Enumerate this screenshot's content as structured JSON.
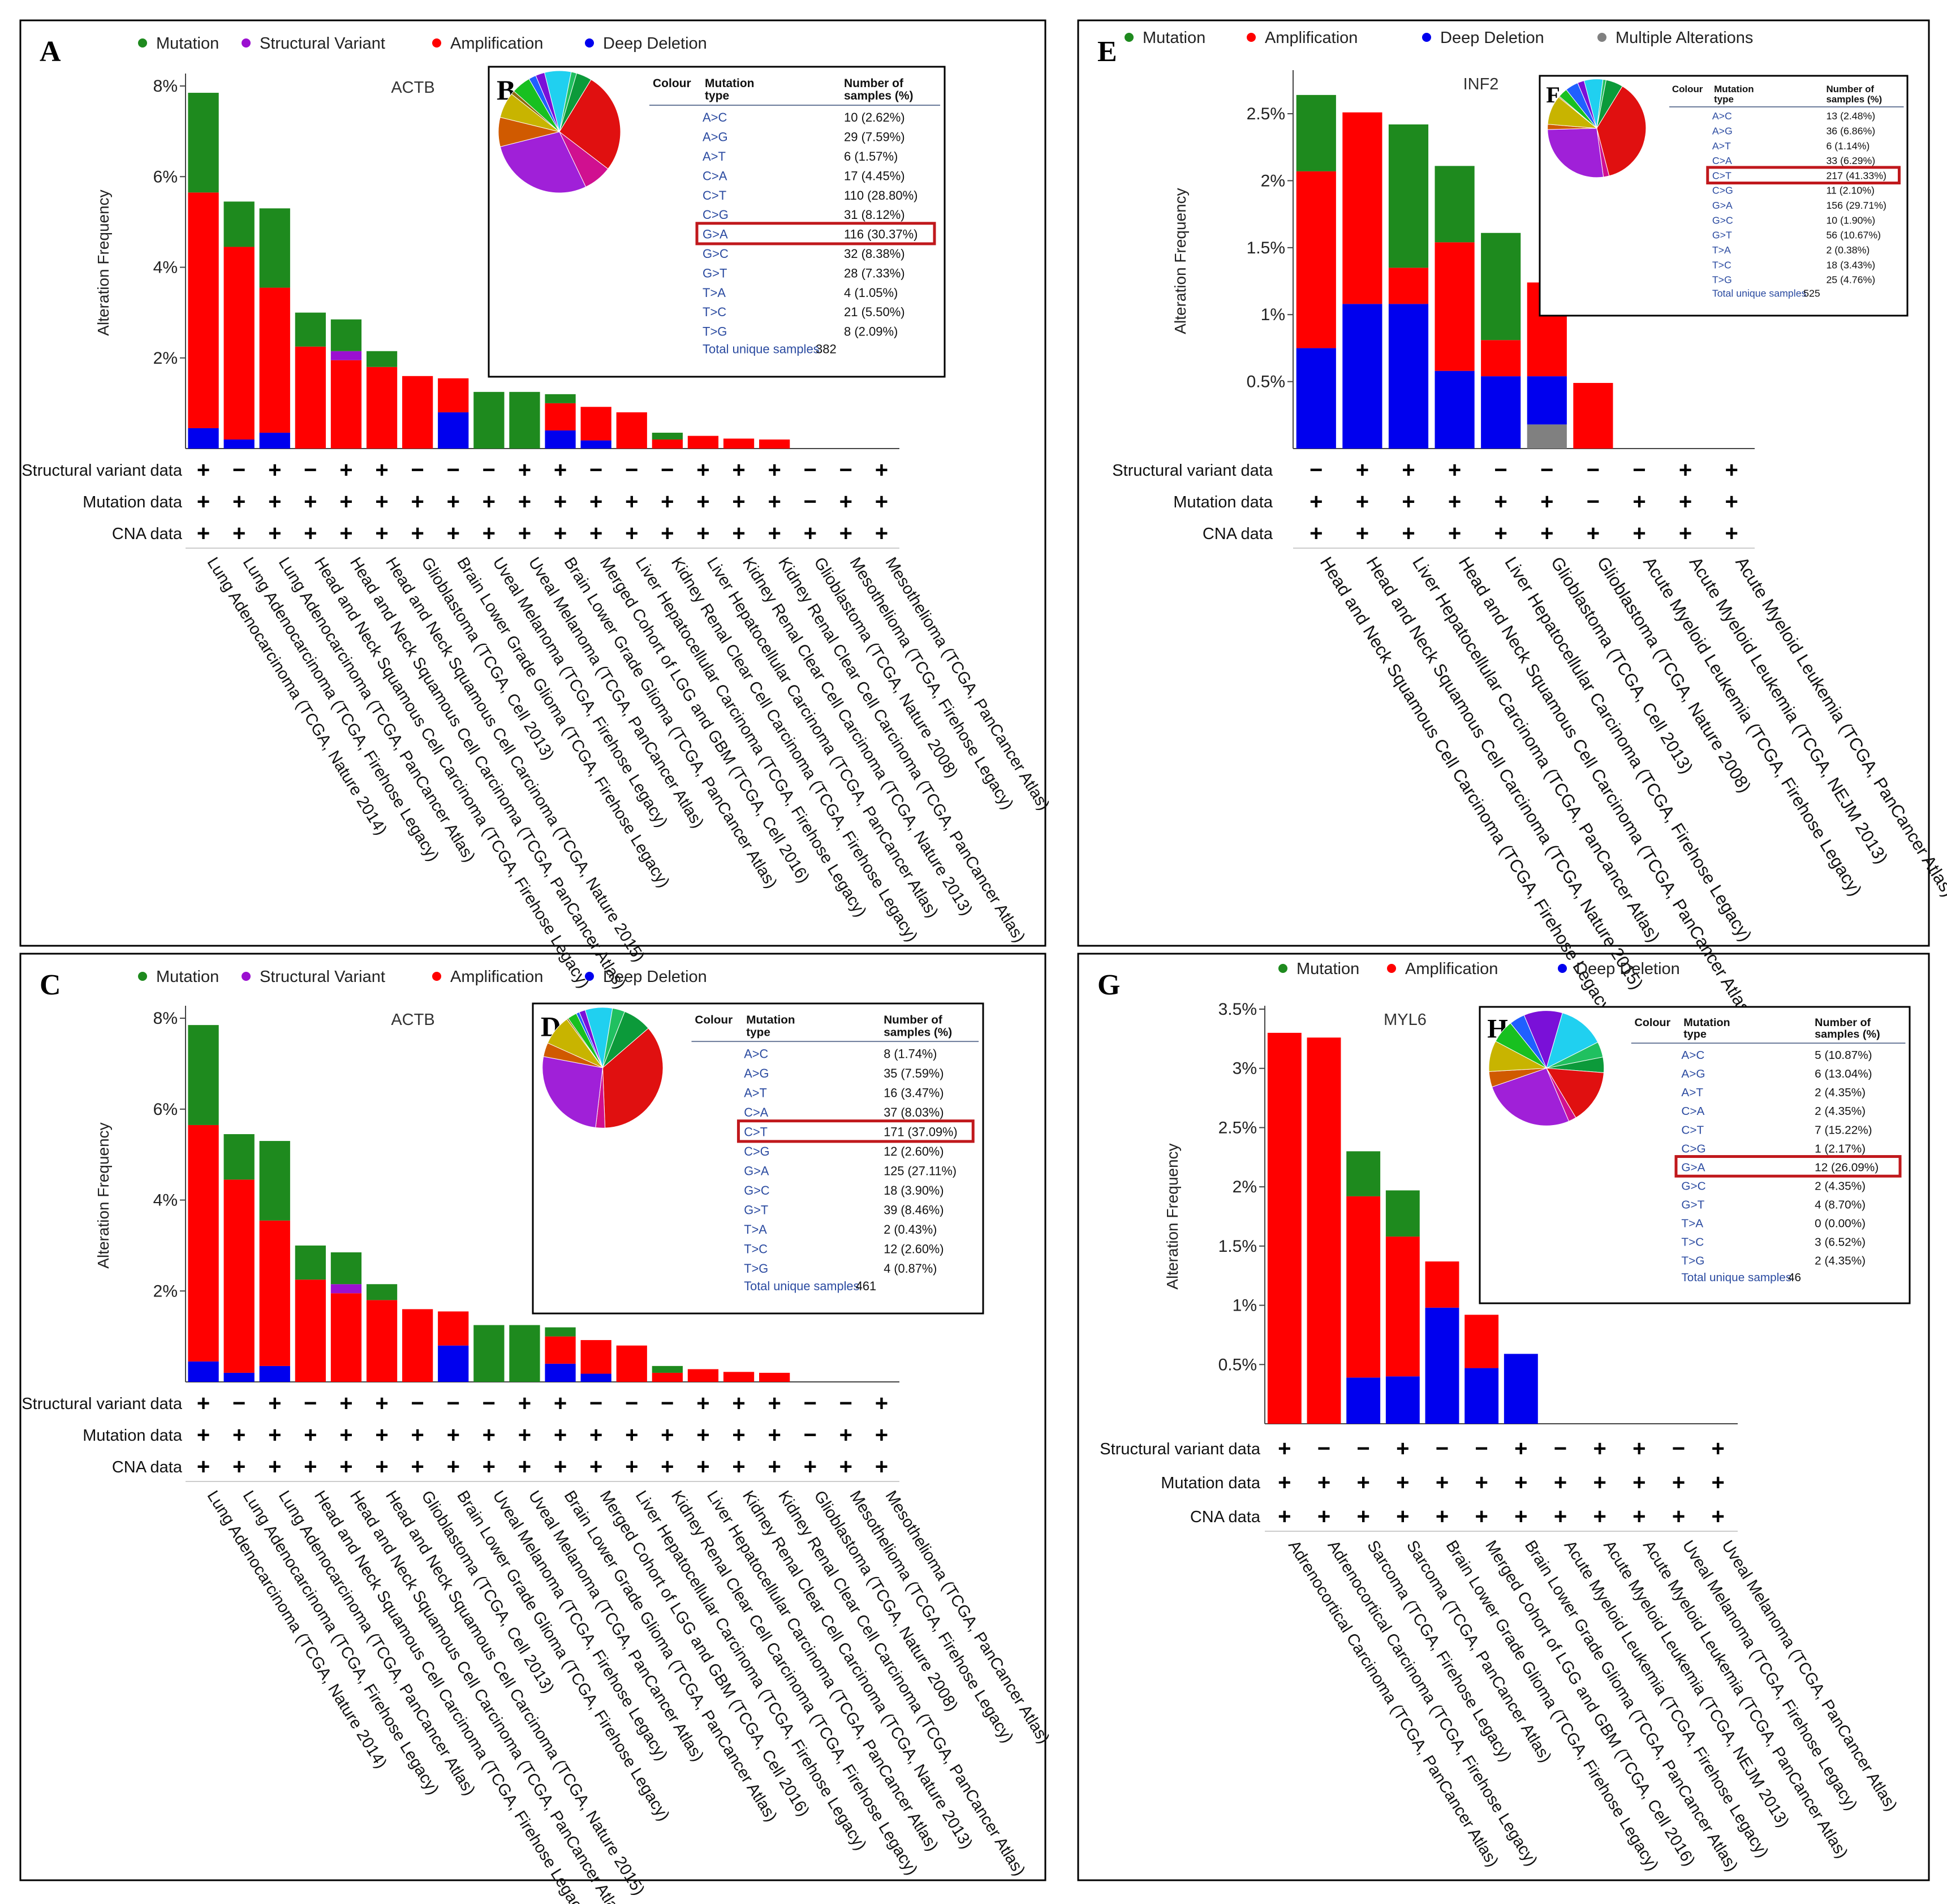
{
  "legends": {
    "A": [
      "Mutation",
      "Structural Variant",
      "Amplification",
      "Deep Deletion"
    ],
    "C": [
      "Mutation",
      "Structural Variant",
      "Amplification",
      "Deep Deletion"
    ],
    "E": [
      "Mutation",
      "Amplification",
      "Deep Deletion",
      "Multiple Alterations"
    ],
    "G": [
      "Mutation",
      "Amplification",
      "Deep Deletion"
    ]
  },
  "colors": {
    "mutation": "#1e8a1e",
    "structural": "#9b10d0",
    "amplification": "#ff0000",
    "deletion": "#0000ee",
    "multiple": "#808080",
    "highlight": "#c0181c",
    "table_text": "#2a4aa0"
  },
  "row_labels": [
    "Structural variant data",
    "Mutation data",
    "CNA data"
  ],
  "table_headers": {
    "colour": "Colour",
    "mutation_type_1": "Mutation",
    "mutation_type_2": "type",
    "samples_1": "Number of",
    "samples_2": "samples (%)"
  },
  "pie_palette": [
    "#7a10d8",
    "#20d0f0",
    "#20c060",
    "#0c9a3a",
    "#e01010",
    "#d01090",
    "#a020d8",
    "#d05a00",
    "#c8b400",
    "#8c6a10",
    "#18c020",
    "#2060ff",
    "#9aa000"
  ],
  "chart_data": [
    {
      "letter": "A",
      "inset_letter": "B",
      "type": "bar",
      "title": "ACTB",
      "ylabel": "Alteration Frequency",
      "ylim": [
        0,
        8.2
      ],
      "yticks": [
        2,
        4,
        6,
        8
      ],
      "ytick_labels": [
        "2%",
        "4%",
        "6%",
        "8%"
      ],
      "categories": [
        "Lung Adenocarcinoma (TCGA, Nature 2014)",
        "Lung Adenocarcinoma (TCGA, Firehose Legacy)",
        "Lung Adenocarcinoma (TCGA, PanCancer Atlas)",
        "Head and Neck Squamous Cell Carcinoma (TCGA, Firehose Legacy)",
        "Head and Neck Squamous Cell Carcinoma (TCGA, PanCancer Atlas)",
        "Head and Neck Squamous Cell Carcinoma (TCGA, Nature 2015)",
        "Glioblastoma (TCGA, Cell 2013)",
        "Brain Lower Grade Glioma (TCGA, Firehose Legacy)",
        "Uveal Melanoma (TCGA, Firehose Legacy)",
        "Uveal Melanoma (TCGA, PanCancer Atlas)",
        "Brain Lower Grade Glioma (TCGA, PanCancer Atlas)",
        "Merged Cohort of LGG and GBM (TCGA, Cell 2016)",
        "Liver Hepatocellular Carcinoma (TCGA, Firehose Legacy)",
        "Kidney Renal Clear Cell Carcinoma (TCGA, Firehose Legacy)",
        "Liver Hepatocellular Carcinoma (TCGA, PanCancer Atlas)",
        "Kidney Renal Clear Cell Carcinoma (TCGA, Nature 2013)",
        "Kidney Renal Clear Cell Carcinoma (TCGA, PanCancer Atlas)",
        "Glioblastoma (TCGA, Nature 2008)",
        "Mesothelioma (TCGA, Firehose Legacy)",
        "Mesothelioma (TCGA, PanCancer Atlas)"
      ],
      "series": [
        {
          "name": "Deep Deletion",
          "key": "deletion",
          "values": [
            0.45,
            0.2,
            0.35,
            0,
            0,
            0,
            0,
            0.8,
            0,
            0,
            0.4,
            0.18,
            0,
            0,
            0,
            0,
            0,
            0,
            0,
            0
          ]
        },
        {
          "name": "Amplification",
          "key": "amplification",
          "values": [
            5.2,
            4.25,
            3.2,
            2.25,
            1.95,
            1.8,
            1.6,
            0.75,
            0,
            0,
            0.6,
            0.74,
            0.8,
            0.2,
            0.28,
            0.22,
            0.2,
            0,
            0,
            0
          ]
        },
        {
          "name": "Structural Variant",
          "key": "structural",
          "values": [
            0,
            0,
            0,
            0,
            0.2,
            0,
            0,
            0,
            0,
            0,
            0,
            0,
            0,
            0,
            0,
            0,
            0,
            0,
            0,
            0
          ]
        },
        {
          "name": "Mutation",
          "key": "mutation",
          "values": [
            2.2,
            1.0,
            1.75,
            0.75,
            0.7,
            0.35,
            0,
            0,
            1.25,
            1.25,
            0.2,
            0,
            0,
            0.15,
            0,
            0,
            0,
            0,
            0,
            0
          ]
        }
      ],
      "markers": [
        [
          "+",
          "-",
          "+",
          "-",
          "+",
          "+",
          "-",
          "-",
          "-",
          "+",
          "+",
          "-",
          "-",
          "-",
          "+",
          "+",
          "+",
          "-",
          "-",
          "+"
        ],
        [
          "+",
          "+",
          "+",
          "+",
          "+",
          "+",
          "+",
          "+",
          "+",
          "+",
          "+",
          "+",
          "+",
          "+",
          "+",
          "+",
          "+",
          "-",
          "+",
          "+"
        ],
        [
          "+",
          "+",
          "+",
          "+",
          "+",
          "+",
          "+",
          "+",
          "+",
          "+",
          "+",
          "+",
          "+",
          "+",
          "+",
          "+",
          "+",
          "+",
          "+",
          "+"
        ]
      ],
      "table": [
        [
          "A>C",
          "10 (2.62%)"
        ],
        [
          "A>G",
          "29 (7.59%)"
        ],
        [
          "A>T",
          "6 (1.57%)"
        ],
        [
          "C>A",
          "17 (4.45%)"
        ],
        [
          "C>T",
          "110 (28.80%)"
        ],
        [
          "C>G",
          "31 (8.12%)"
        ],
        [
          "G>A",
          "116 (30.37%)"
        ],
        [
          "G>C",
          "32 (8.38%)"
        ],
        [
          "G>T",
          "28 (7.33%)"
        ],
        [
          "T>A",
          "4 (1.05%)"
        ],
        [
          "T>C",
          "21 (5.50%)"
        ],
        [
          "T>G",
          "8 (2.09%)"
        ]
      ],
      "highlight_row": 6,
      "total_label": "Total unique samples",
      "total_value": "382"
    },
    {
      "letter": "C",
      "inset_letter": "D",
      "type": "bar",
      "title": "ACTB",
      "ylabel": "Alteration Frequency",
      "ylim": [
        0,
        8.2
      ],
      "yticks": [
        2,
        4,
        6,
        8
      ],
      "ytick_labels": [
        "2%",
        "4%",
        "6%",
        "8%"
      ],
      "categories": [
        "Lung Adenocarcinoma (TCGA, Nature 2014)",
        "Lung Adenocarcinoma (TCGA, Firehose Legacy)",
        "Lung Adenocarcinoma (TCGA, PanCancer Atlas)",
        "Head and Neck Squamous Cell Carcinoma (TCGA, Firehose Legacy)",
        "Head and Neck Squamous Cell Carcinoma (TCGA, PanCancer Atlas)",
        "Head and Neck Squamous Cell Carcinoma (TCGA, Nature 2015)",
        "Glioblastoma (TCGA, Cell 2013)",
        "Brain Lower Grade Glioma (TCGA, Firehose Legacy)",
        "Uveal Melanoma (TCGA, Firehose Legacy)",
        "Uveal Melanoma (TCGA, PanCancer Atlas)",
        "Brain Lower Grade Glioma (TCGA, PanCancer Atlas)",
        "Merged Cohort of LGG and GBM (TCGA, Cell 2016)",
        "Liver Hepatocellular Carcinoma (TCGA, Firehose Legacy)",
        "Kidney Renal Clear Cell Carcinoma (TCGA, Firehose Legacy)",
        "Liver Hepatocellular Carcinoma (TCGA, PanCancer Atlas)",
        "Kidney Renal Clear Cell Carcinoma (TCGA, Nature 2013)",
        "Kidney Renal Clear Cell Carcinoma (TCGA, PanCancer Atlas)",
        "Glioblastoma (TCGA, Nature 2008)",
        "Mesothelioma (TCGA, Firehose Legacy)",
        "Mesothelioma (TCGA, PanCancer Atlas)"
      ],
      "series": [
        {
          "name": "Deep Deletion",
          "key": "deletion",
          "values": [
            0.45,
            0.2,
            0.35,
            0,
            0,
            0,
            0,
            0.8,
            0,
            0,
            0.4,
            0.18,
            0,
            0,
            0,
            0,
            0,
            0,
            0,
            0
          ]
        },
        {
          "name": "Amplification",
          "key": "amplification",
          "values": [
            5.2,
            4.25,
            3.2,
            2.25,
            1.95,
            1.8,
            1.6,
            0.75,
            0,
            0,
            0.6,
            0.74,
            0.8,
            0.2,
            0.28,
            0.22,
            0.2,
            0,
            0,
            0
          ]
        },
        {
          "name": "Structural Variant",
          "key": "structural",
          "values": [
            0,
            0,
            0,
            0,
            0.2,
            0,
            0,
            0,
            0,
            0,
            0,
            0,
            0,
            0,
            0,
            0,
            0,
            0,
            0,
            0
          ]
        },
        {
          "name": "Mutation",
          "key": "mutation",
          "values": [
            2.2,
            1.0,
            1.75,
            0.75,
            0.7,
            0.35,
            0,
            0,
            1.25,
            1.25,
            0.2,
            0,
            0,
            0.15,
            0,
            0,
            0,
            0,
            0,
            0
          ]
        }
      ],
      "markers": [
        [
          "+",
          "-",
          "+",
          "-",
          "+",
          "+",
          "-",
          "-",
          "-",
          "+",
          "+",
          "-",
          "-",
          "-",
          "+",
          "+",
          "+",
          "-",
          "-",
          "+"
        ],
        [
          "+",
          "+",
          "+",
          "+",
          "+",
          "+",
          "+",
          "+",
          "+",
          "+",
          "+",
          "+",
          "+",
          "+",
          "+",
          "+",
          "+",
          "-",
          "+",
          "+"
        ],
        [
          "+",
          "+",
          "+",
          "+",
          "+",
          "+",
          "+",
          "+",
          "+",
          "+",
          "+",
          "+",
          "+",
          "+",
          "+",
          "+",
          "+",
          "+",
          "+",
          "+"
        ]
      ],
      "table": [
        [
          "A>C",
          "8 (1.74%)"
        ],
        [
          "A>G",
          "35 (7.59%)"
        ],
        [
          "A>T",
          "16 (3.47%)"
        ],
        [
          "C>A",
          "37 (8.03%)"
        ],
        [
          "C>T",
          "171 (37.09%)"
        ],
        [
          "C>G",
          "12 (2.60%)"
        ],
        [
          "G>A",
          "125 (27.11%)"
        ],
        [
          "G>C",
          "18 (3.90%)"
        ],
        [
          "G>T",
          "39 (8.46%)"
        ],
        [
          "T>A",
          "2 (0.43%)"
        ],
        [
          "T>C",
          "12 (2.60%)"
        ],
        [
          "T>G",
          "4 (0.87%)"
        ]
      ],
      "highlight_row": 4,
      "total_label": "Total unique samples",
      "total_value": "461"
    },
    {
      "letter": "E",
      "inset_letter": "F",
      "type": "bar",
      "title": "INF2",
      "ylabel": "Alteration Frequency",
      "ylim": [
        0,
        2.8
      ],
      "yticks": [
        0.5,
        1,
        1.5,
        2,
        2.5
      ],
      "ytick_labels": [
        "0.5%",
        "1%",
        "1.5%",
        "2%",
        "2.5%"
      ],
      "categories": [
        "Head and Neck Squamous Cell Carcinoma (TCGA, Firehose Legacy)",
        "Head and Neck Squamous Cell Carcinoma (TCGA, Nature 2015)",
        "Liver Hepatocellular Carcinoma (TCGA, PanCancer Atlas)",
        "Head and Neck Squamous Cell Carcinoma (TCGA, PanCancer Atlas)",
        "Liver Hepatocellular Carcinoma (TCGA, Firehose Legacy)",
        "Glioblastoma (TCGA, Cell 2013)",
        "Glioblastoma (TCGA, Nature 2008)",
        "Acute Myeloid Leukemia (TCGA, Firehose Legacy)",
        "Acute Myeloid Leukemia (TCGA, NEJM 2013)",
        "Acute Myeloid Leukemia (TCGA, PanCancer Atlas)"
      ],
      "series": [
        {
          "name": "Multiple Alterations",
          "key": "multiple",
          "values": [
            0,
            0,
            0,
            0,
            0,
            0.18,
            0,
            0,
            0,
            0
          ]
        },
        {
          "name": "Deep Deletion",
          "key": "deletion",
          "values": [
            0.75,
            1.08,
            1.08,
            0.58,
            0.54,
            0.36,
            0,
            0,
            0,
            0
          ]
        },
        {
          "name": "Amplification",
          "key": "amplification",
          "values": [
            1.32,
            1.43,
            0.27,
            0.96,
            0.27,
            0.7,
            0.49,
            0,
            0,
            0
          ]
        },
        {
          "name": "Mutation",
          "key": "mutation",
          "values": [
            0.57,
            0,
            1.07,
            0.57,
            0.8,
            0,
            0,
            0,
            0,
            0
          ]
        }
      ],
      "markers": [
        [
          "-",
          "+",
          "+",
          "+",
          "-",
          "-",
          "-",
          "-",
          "+",
          "+"
        ],
        [
          "+",
          "+",
          "+",
          "+",
          "+",
          "+",
          "-",
          "+",
          "+",
          "+"
        ],
        [
          "+",
          "+",
          "+",
          "+",
          "+",
          "+",
          "+",
          "+",
          "+",
          "+"
        ]
      ],
      "table": [
        [
          "A>C",
          "13 (2.48%)"
        ],
        [
          "A>G",
          "36 (6.86%)"
        ],
        [
          "A>T",
          "6 (1.14%)"
        ],
        [
          "C>A",
          "33 (6.29%)"
        ],
        [
          "C>T",
          "217 (41.33%)"
        ],
        [
          "C>G",
          "11 (2.10%)"
        ],
        [
          "G>A",
          "156 (29.71%)"
        ],
        [
          "G>C",
          "10 (1.90%)"
        ],
        [
          "G>T",
          "56 (10.67%)"
        ],
        [
          "T>A",
          "2 (0.38%)"
        ],
        [
          "T>C",
          "18 (3.43%)"
        ],
        [
          "T>G",
          "25 (4.76%)"
        ]
      ],
      "highlight_row": 4,
      "total_label": "Total unique samples",
      "total_value": "525"
    },
    {
      "letter": "G",
      "inset_letter": "H",
      "type": "bar",
      "title": "MYL6",
      "ylabel": "Alteration Frequency",
      "ylim": [
        0,
        3.5
      ],
      "yticks": [
        0.5,
        1,
        1.5,
        2,
        2.5,
        3,
        3.5
      ],
      "ytick_labels": [
        "0.5%",
        "1%",
        "1.5%",
        "2%",
        "2.5%",
        "3%",
        "3.5%"
      ],
      "categories": [
        "Adrenocortical Carcinoma (TCGA, PanCancer Atlas)",
        "Adrenocortical Carcinoma (TCGA, Firehose Legacy)",
        "Sarcoma (TCGA, Firehose Legacy)",
        "Sarcoma (TCGA, PanCancer Atlas)",
        "Brain Lower Grade Glioma (TCGA, Firehose Legacy)",
        "Merged Cohort of LGG and GBM (TCGA, Cell 2016)",
        "Brain Lower Grade Glioma (TCGA, PanCancer Atlas)",
        "Acute Myeloid Leukemia (TCGA, Firehose Legacy)",
        "Acute Myeloid Leukemia (TCGA, NEJM 2013)",
        "Acute Myeloid Leukemia (TCGA, PanCancer Atlas)",
        "Uveal Melanoma (TCGA, Firehose Legacy)",
        "Uveal Melanoma (TCGA, PanCancer Atlas)"
      ],
      "series": [
        {
          "name": "Deep Deletion",
          "key": "deletion",
          "values": [
            0,
            0,
            0.39,
            0.4,
            0.98,
            0.47,
            0.59,
            0,
            0,
            0,
            0,
            0
          ]
        },
        {
          "name": "Amplification",
          "key": "amplification",
          "values": [
            3.3,
            3.26,
            1.53,
            1.18,
            0.39,
            0.45,
            0,
            0,
            0,
            0,
            0,
            0
          ]
        },
        {
          "name": "Mutation",
          "key": "mutation",
          "values": [
            0,
            0,
            0.38,
            0.39,
            0,
            0,
            0,
            0,
            0,
            0,
            0,
            0
          ]
        }
      ],
      "markers": [
        [
          "+",
          "-",
          "-",
          "+",
          "-",
          "-",
          "+",
          "-",
          "+",
          "+",
          "-",
          "+"
        ],
        [
          "+",
          "+",
          "+",
          "+",
          "+",
          "+",
          "+",
          "+",
          "+",
          "+",
          "+",
          "+"
        ],
        [
          "+",
          "+",
          "+",
          "+",
          "+",
          "+",
          "+",
          "+",
          "+",
          "+",
          "+",
          "+"
        ]
      ],
      "table": [
        [
          "A>C",
          "5 (10.87%)"
        ],
        [
          "A>G",
          "6 (13.04%)"
        ],
        [
          "A>T",
          "2 (4.35%)"
        ],
        [
          "C>A",
          "2 (4.35%)"
        ],
        [
          "C>T",
          "7 (15.22%)"
        ],
        [
          "C>G",
          "1 (2.17%)"
        ],
        [
          "G>A",
          "12 (26.09%)"
        ],
        [
          "G>C",
          "2 (4.35%)"
        ],
        [
          "G>T",
          "4 (8.70%)"
        ],
        [
          "T>A",
          "0 (0.00%)"
        ],
        [
          "T>C",
          "3 (6.52%)"
        ],
        [
          "T>G",
          "2 (4.35%)"
        ]
      ],
      "highlight_row": 6,
      "total_label": "Total unique samples",
      "total_value": "46"
    }
  ]
}
